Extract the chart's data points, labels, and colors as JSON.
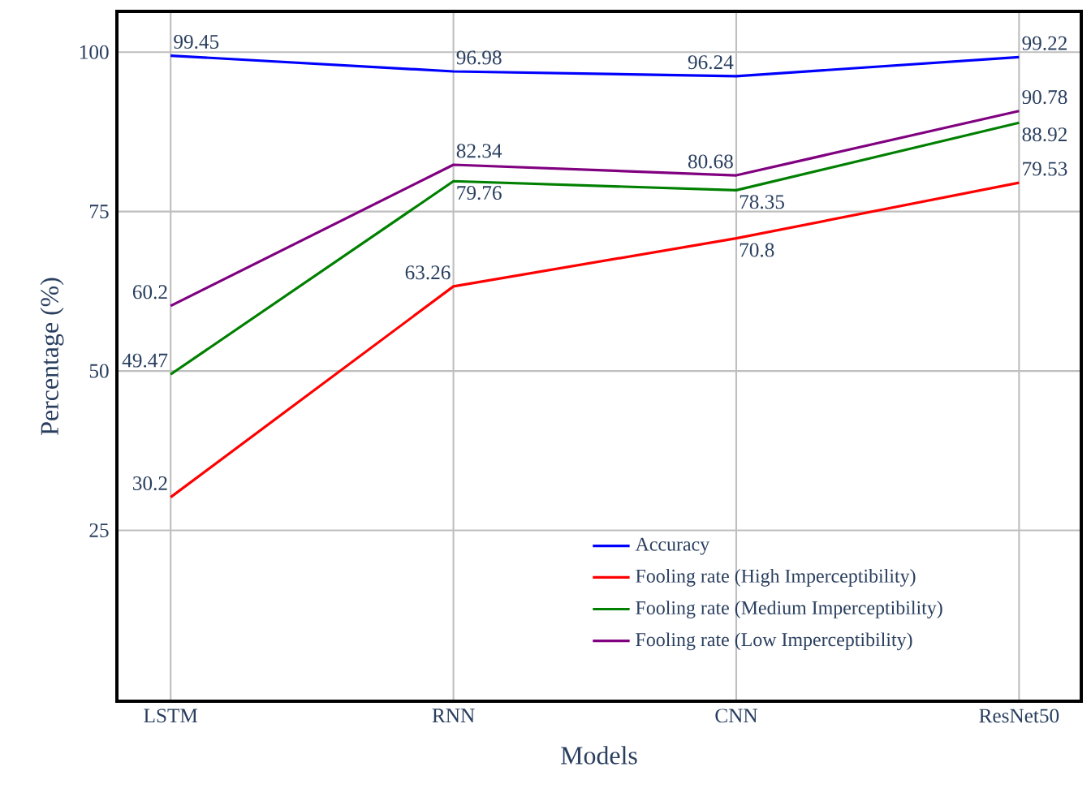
{
  "chart_data": {
    "type": "line",
    "xlabel": "Models",
    "ylabel": "Percentage (%)",
    "categories": [
      "LSTM",
      "RNN",
      "CNN",
      "ResNet50"
    ],
    "series": [
      {
        "name": "Accuracy",
        "color": "#0000ff",
        "values": [
          99.45,
          96.98,
          96.24,
          99.22
        ]
      },
      {
        "name": "Fooling rate (High Imperceptibility)",
        "color": "#ff0000",
        "values": [
          30.2,
          63.26,
          70.8,
          79.53
        ]
      },
      {
        "name": "Fooling rate (Medium Imperceptibility)",
        "color": "#008000",
        "values": [
          49.47,
          79.76,
          78.35,
          88.92
        ]
      },
      {
        "name": "Fooling rate (Low Imperceptibility)",
        "color": "#800080",
        "values": [
          60.2,
          82.34,
          80.68,
          90.78
        ]
      }
    ],
    "ylim": [
      -1.8,
      106.4
    ],
    "yticks": [
      25,
      50,
      75,
      100
    ],
    "grid": true,
    "legend": "bottom",
    "data_labels": true,
    "marker": "none",
    "line_style": "solid"
  }
}
